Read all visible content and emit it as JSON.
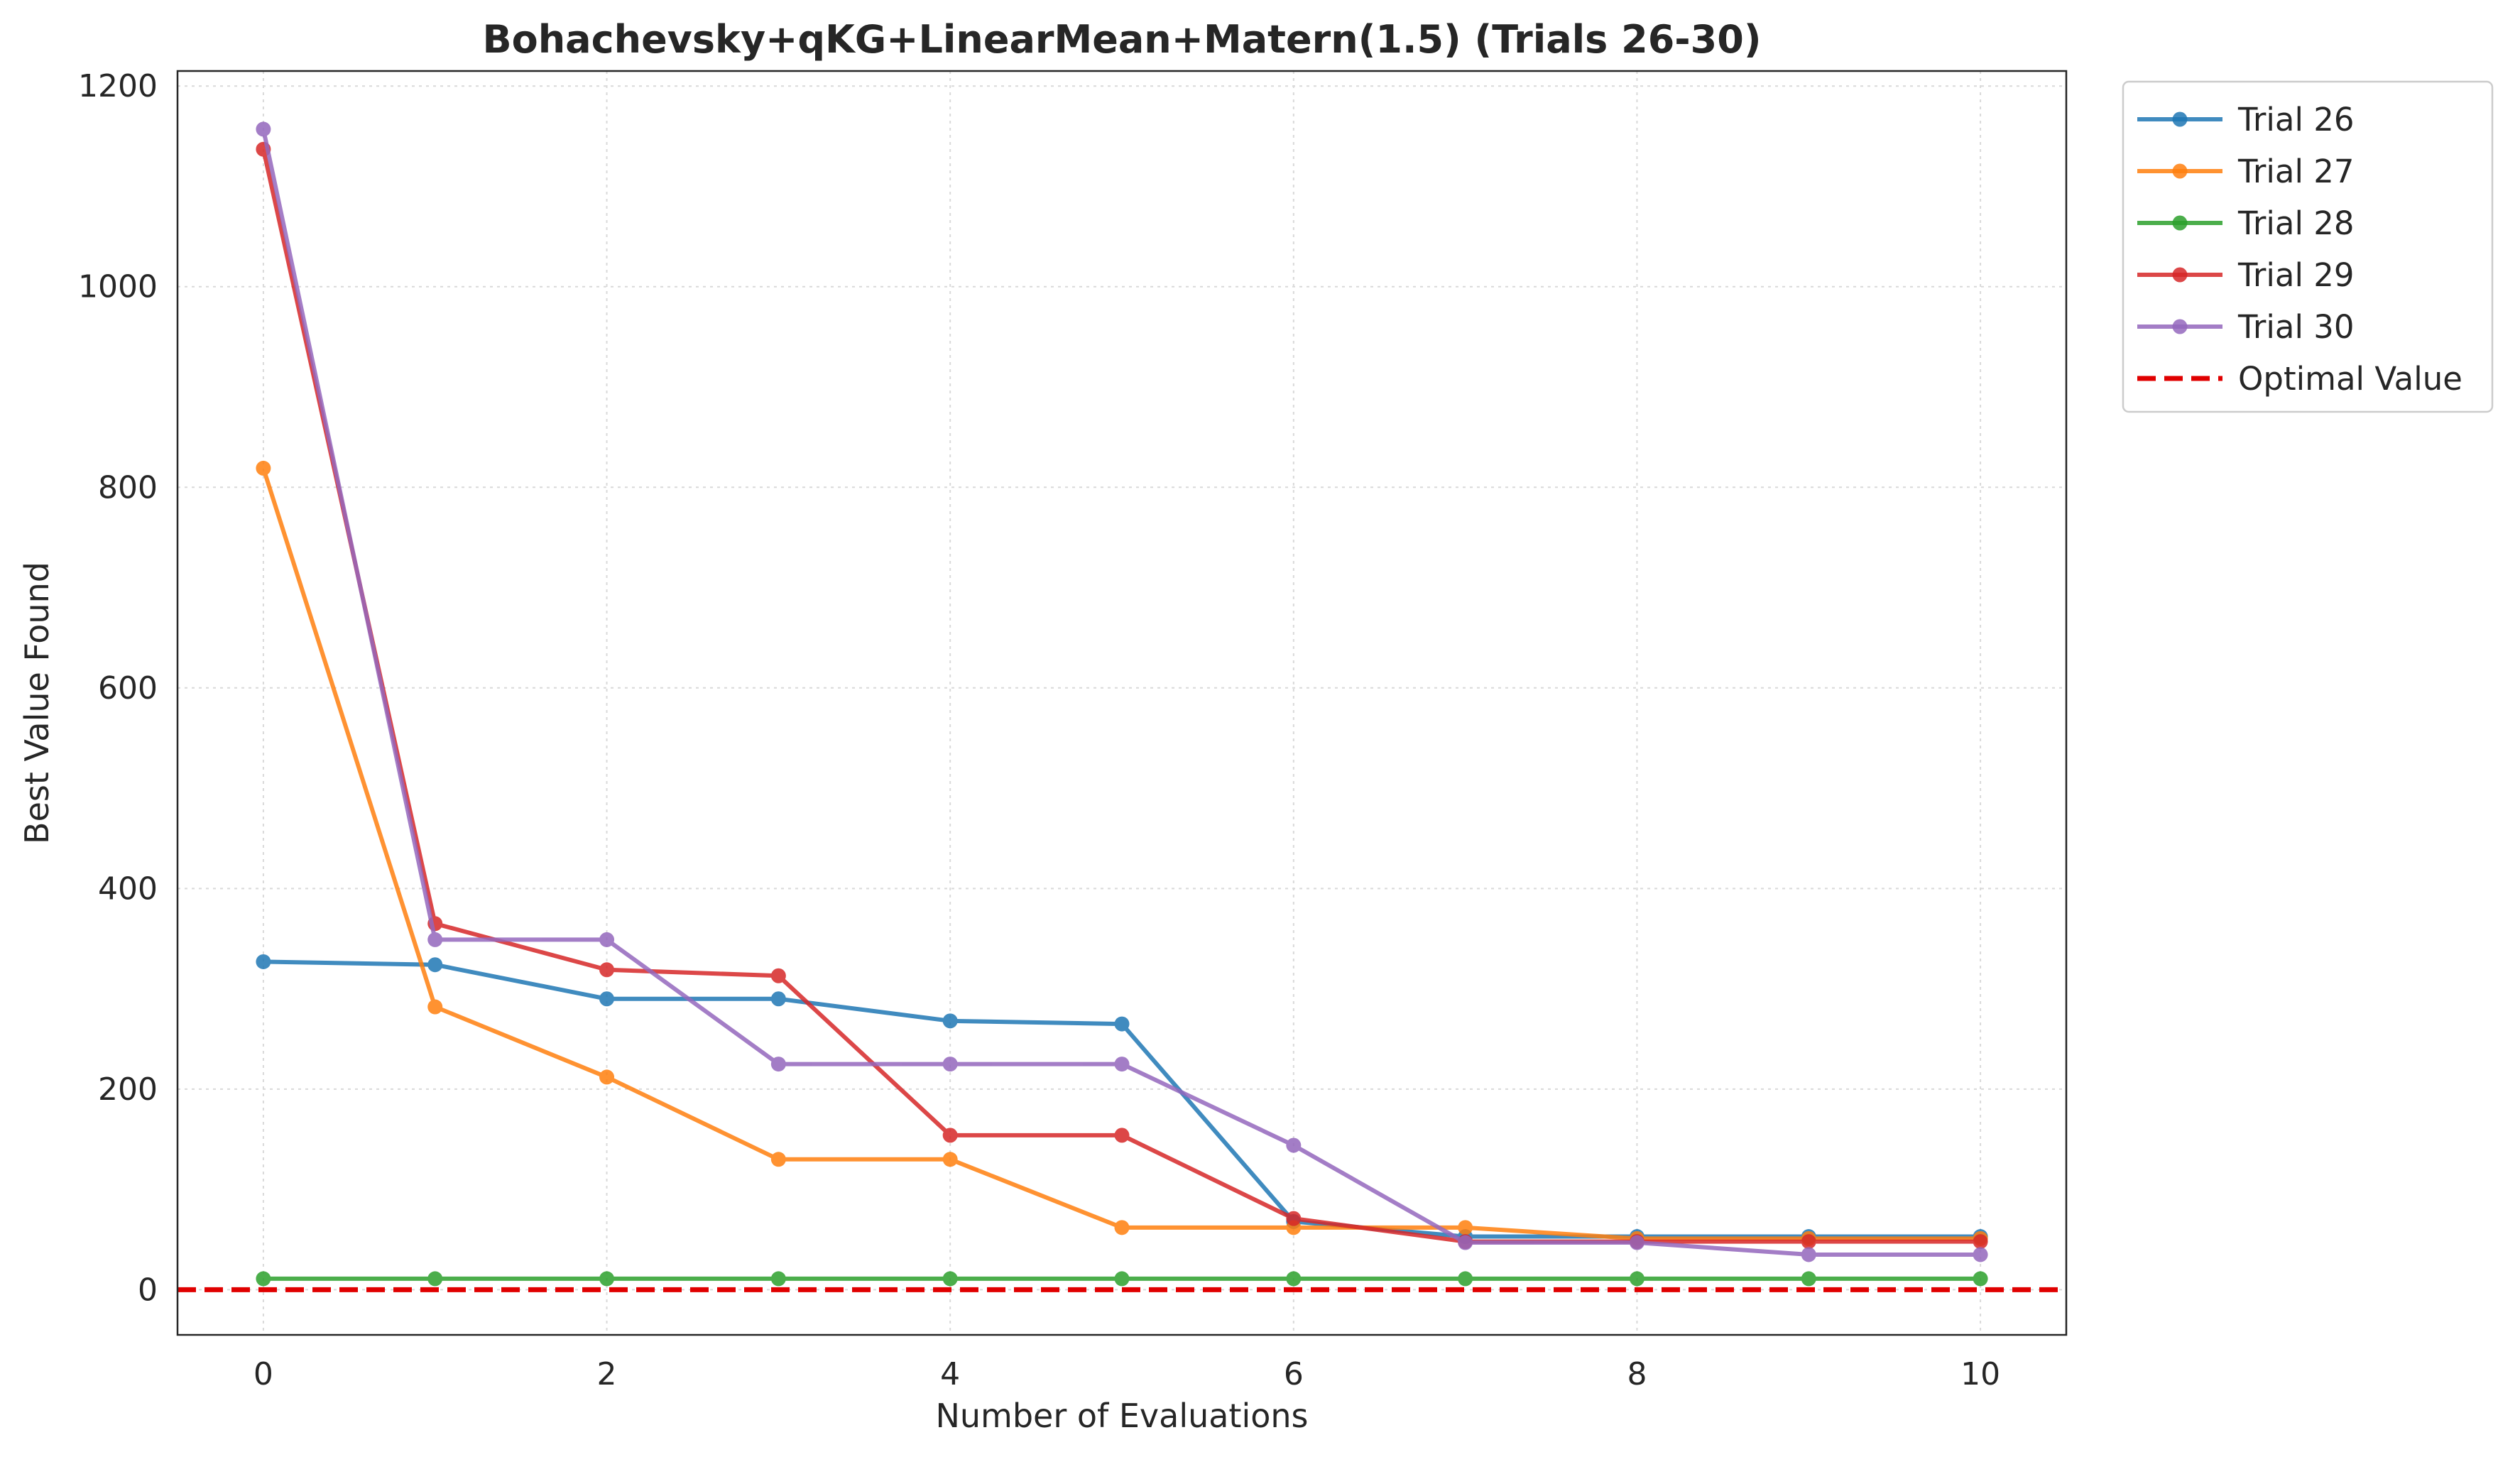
{
  "chart_data": {
    "type": "line",
    "title": "Bohachevsky+qKG+LinearMean+Matern(1.5) (Trials 26-30)",
    "xlabel": "Number of Evaluations",
    "ylabel": "Best Value Found",
    "xlim": [
      -0.5,
      10.5
    ],
    "ylim": [
      -45,
      1215
    ],
    "xticks": [
      0,
      2,
      4,
      6,
      8,
      10
    ],
    "yticks": [
      0,
      200,
      400,
      600,
      800,
      1000,
      1200
    ],
    "grid": true,
    "legend_position": "outside-top-right",
    "x": [
      0,
      1,
      2,
      3,
      4,
      5,
      6,
      7,
      8,
      9,
      10
    ],
    "series": [
      {
        "name": "Trial 26",
        "color": "#1f77b4",
        "values": [
          327,
          324,
          290,
          290,
          268,
          265,
          68,
          53,
          53,
          53,
          53
        ]
      },
      {
        "name": "Trial 27",
        "color": "#ff7f0e",
        "values": [
          819,
          282,
          212,
          130,
          130,
          62,
          62,
          62,
          51,
          51,
          51
        ]
      },
      {
        "name": "Trial 28",
        "color": "#2ca02c",
        "values": [
          11,
          11,
          11,
          11,
          11,
          11,
          11,
          11,
          11,
          11,
          11
        ]
      },
      {
        "name": "Trial 29",
        "color": "#d62728",
        "values": [
          1137,
          365,
          319,
          313,
          154,
          154,
          71,
          48,
          48,
          48,
          48
        ]
      },
      {
        "name": "Trial 30",
        "color": "#9467bd",
        "values": [
          1157,
          349,
          349,
          225,
          225,
          225,
          144,
          47,
          47,
          35,
          35
        ]
      }
    ],
    "reference_line": {
      "name": "Optimal Value",
      "y": 0,
      "color": "#e00000",
      "style": "dashed"
    }
  }
}
